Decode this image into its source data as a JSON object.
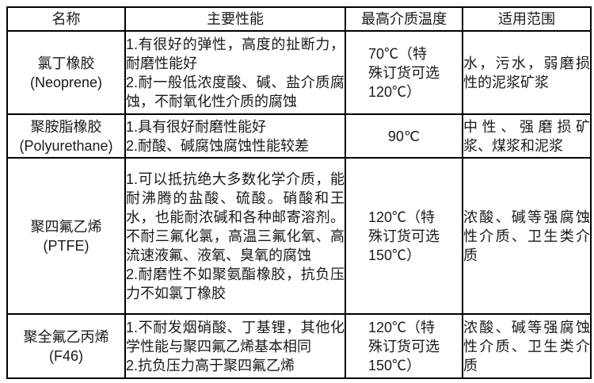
{
  "table": {
    "headers": {
      "name": "名称",
      "properties": "主要性能",
      "max_temp": "最高介质温度",
      "application": "适用范围"
    },
    "rows": [
      {
        "name_cn": "氯丁橡胶",
        "name_en": "(Neoprene)",
        "props": [
          "1.有很好的弹性，高度的扯断力，耐磨性能好",
          "2.耐一般低浓度酸、碱、盐介质腐蚀，不耐氧化性介质的腐蚀"
        ],
        "temp": "70℃（特殊订货可选120℃）",
        "range": "水，污水，弱磨损性的泥浆矿浆"
      },
      {
        "name_cn": "聚胺脂橡胶",
        "name_en": "(Polyurethane)",
        "props": [
          "1.具有很好耐磨性能好",
          "2.耐酸、碱腐蚀腐蚀性能较差"
        ],
        "temp": "90℃",
        "range": "中性、强磨损矿浆、煤浆和泥浆"
      },
      {
        "name_cn": "聚四氟乙烯",
        "name_en": "(PTFE)",
        "props": [
          "1.可以抵抗绝大多数化学介质，能耐沸腾的盐酸、硫酸。硝酸和王水，也能耐浓碱和各种邮寄溶剂。不耐三氟化氯，高温三氟化氧、高流速液氟、液氧、臭氧的腐蚀",
          "2.耐磨性不如聚氨酯橡胶，抗负压力不如氯丁橡胶"
        ],
        "temp": "120℃（特殊订货可选150℃）",
        "range": "浓酸、碱等强腐蚀性介质、卫生类介质"
      },
      {
        "name_cn": "聚全氟乙丙烯",
        "name_en": "(F46)",
        "props": [
          "1.不耐发烟硝酸、丁基锂，其他化学性能与聚四氟乙烯基本相同",
          "2.抗负压力高于聚四氟乙烯"
        ],
        "temp": "120℃（特殊订货可选150℃）",
        "range": "浓酸、碱等强腐蚀性介质、卫生类介质"
      }
    ]
  },
  "colors": {
    "border": "#000000",
    "text": "#1a1a1a",
    "background": "#ffffff"
  }
}
